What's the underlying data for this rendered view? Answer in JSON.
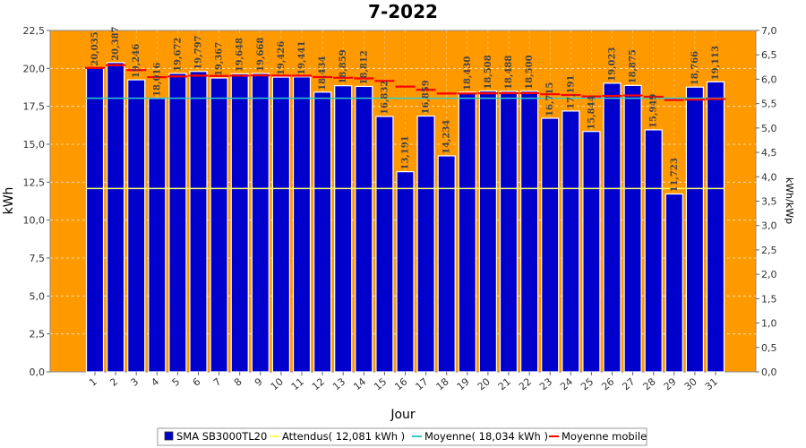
{
  "chart_data": {
    "type": "bar",
    "title": "7-2022",
    "xlabel": "Jour",
    "ylabel": "kWh",
    "ylabel_right": "kWh/kWp",
    "ylim": [
      0,
      22.5
    ],
    "ylim_right": [
      0,
      7.0
    ],
    "yticks": [
      "0,0",
      "2,5",
      "5,0",
      "7,5",
      "10,0",
      "12,5",
      "15,0",
      "17,5",
      "20,0",
      "22,5"
    ],
    "yticks_right": [
      "0,0",
      "0,5",
      "1,0",
      "1,5",
      "2,0",
      "2,5",
      "3,0",
      "3,5",
      "4,0",
      "4,5",
      "5,0",
      "5,5",
      "6,0",
      "6,5",
      "7,0"
    ],
    "categories": [
      "1",
      "2",
      "3",
      "4",
      "5",
      "6",
      "7",
      "8",
      "9",
      "10",
      "11",
      "12",
      "13",
      "14",
      "15",
      "16",
      "17",
      "18",
      "19",
      "20",
      "21",
      "22",
      "23",
      "24",
      "25",
      "26",
      "27",
      "28",
      "29",
      "30",
      "31"
    ],
    "series": [
      {
        "name": "SMA SB3000TL20",
        "color": "#0000cc",
        "values": [
          20.035,
          20.387,
          19.246,
          18.016,
          19.672,
          19.797,
          19.367,
          19.648,
          19.668,
          19.426,
          19.441,
          18.434,
          18.859,
          18.812,
          16.832,
          13.191,
          16.859,
          14.234,
          18.43,
          18.508,
          18.488,
          18.5,
          16.715,
          17.191,
          15.844,
          19.023,
          18.875,
          15.949,
          11.723,
          18.766,
          19.113
        ],
        "value_labels": [
          "20,035",
          "20,387",
          "19,246",
          "18,016",
          "19,672",
          "19,797",
          "19,367",
          "19,648",
          "19,668",
          "19,426",
          "19,441",
          "18,434",
          "18,859",
          "18,812",
          "16,832",
          "13,191",
          "16,859",
          "14,234",
          "18,430",
          "18,508",
          "18,488",
          "18,500",
          "16,715",
          "17,191",
          "15,844",
          "19,023",
          "18,875",
          "15,949",
          "11,723",
          "18,766",
          "19,113"
        ]
      },
      {
        "name": "Attendus( 12,081 kWh )",
        "color": "#ffff66",
        "constant": 12.081
      },
      {
        "name": "Moyenne( 18,034 kWh )",
        "color": "#33cccc",
        "constant": 18.034
      },
      {
        "name": "Moyenne mobile",
        "color": "#ff0000",
        "values": [
          20.035,
          20.211,
          19.889,
          19.421,
          19.471,
          19.525,
          19.503,
          19.521,
          19.537,
          19.526,
          19.518,
          19.427,
          19.382,
          19.341,
          19.174,
          18.8,
          18.587,
          18.346,
          18.349,
          18.357,
          18.363,
          18.369,
          18.297,
          18.25,
          18.154,
          18.189,
          18.214,
          18.134,
          17.914,
          17.943,
          17.979
        ]
      }
    ],
    "legend_position": "bottom",
    "grid": true,
    "plot_background": "#ff9900"
  }
}
